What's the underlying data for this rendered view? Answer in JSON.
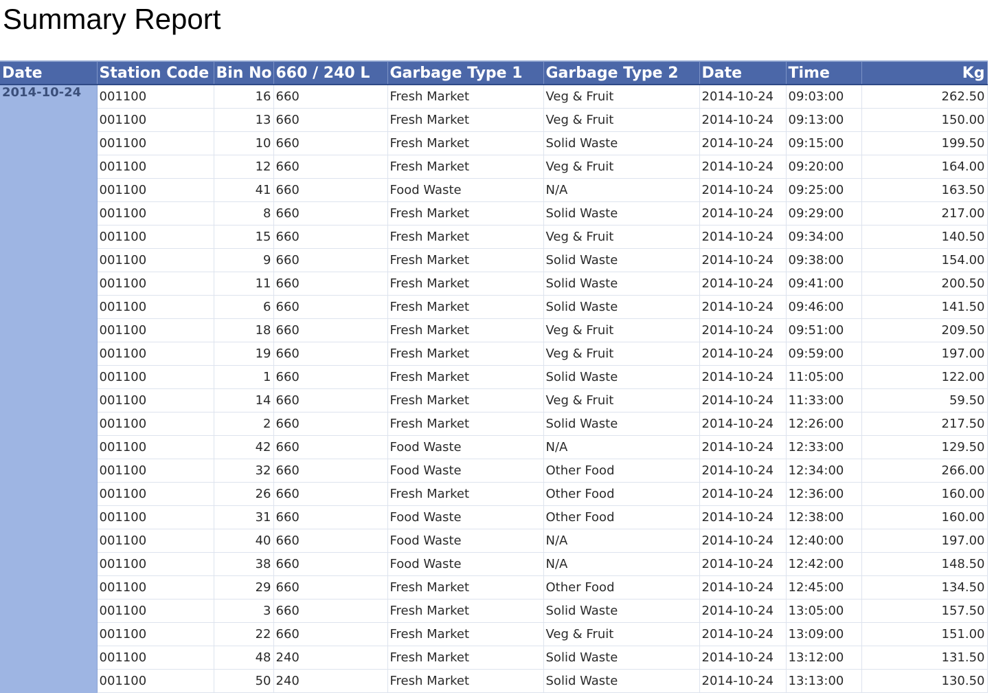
{
  "page": {
    "title": "Summary Report"
  },
  "table": {
    "columns": [
      "Date",
      "Station Code",
      "Bin No",
      "660 / 240 L",
      "Garbage Type 1",
      "Garbage  Type 2",
      "Date",
      "Time",
      "Kg"
    ],
    "group_date": "2014-10-24",
    "rows": [
      [
        "001100",
        "16",
        "660",
        "Fresh Market",
        "Veg & Fruit",
        "2014-10-24",
        "09:03:00",
        "262.50"
      ],
      [
        "001100",
        "13",
        "660",
        "Fresh Market",
        "Veg & Fruit",
        "2014-10-24",
        "09:13:00",
        "150.00"
      ],
      [
        "001100",
        "10",
        "660",
        "Fresh Market",
        "Solid Waste",
        "2014-10-24",
        "09:15:00",
        "199.50"
      ],
      [
        "001100",
        "12",
        "660",
        "Fresh Market",
        "Veg & Fruit",
        "2014-10-24",
        "09:20:00",
        "164.00"
      ],
      [
        "001100",
        "41",
        "660",
        "Food Waste",
        "N/A",
        "2014-10-24",
        "09:25:00",
        "163.50"
      ],
      [
        "001100",
        "8",
        "660",
        "Fresh Market",
        "Solid Waste",
        "2014-10-24",
        "09:29:00",
        "217.00"
      ],
      [
        "001100",
        "15",
        "660",
        "Fresh Market",
        "Veg & Fruit",
        "2014-10-24",
        "09:34:00",
        "140.50"
      ],
      [
        "001100",
        "9",
        "660",
        "Fresh Market",
        "Solid Waste",
        "2014-10-24",
        "09:38:00",
        "154.00"
      ],
      [
        "001100",
        "11",
        "660",
        "Fresh Market",
        "Solid Waste",
        "2014-10-24",
        "09:41:00",
        "200.50"
      ],
      [
        "001100",
        "6",
        "660",
        "Fresh Market",
        "Solid Waste",
        "2014-10-24",
        "09:46:00",
        "141.50"
      ],
      [
        "001100",
        "18",
        "660",
        "Fresh Market",
        "Veg & Fruit",
        "2014-10-24",
        "09:51:00",
        "209.50"
      ],
      [
        "001100",
        "19",
        "660",
        "Fresh Market",
        "Veg & Fruit",
        "2014-10-24",
        "09:59:00",
        "197.00"
      ],
      [
        "001100",
        "1",
        "660",
        "Fresh Market",
        "Solid Waste",
        "2014-10-24",
        "11:05:00",
        "122.00"
      ],
      [
        "001100",
        "14",
        "660",
        "Fresh Market",
        "Veg & Fruit",
        "2014-10-24",
        "11:33:00",
        "59.50"
      ],
      [
        "001100",
        "2",
        "660",
        "Fresh Market",
        "Solid Waste",
        "2014-10-24",
        "12:26:00",
        "217.50"
      ],
      [
        "001100",
        "42",
        "660",
        "Food Waste",
        "N/A",
        "2014-10-24",
        "12:33:00",
        "129.50"
      ],
      [
        "001100",
        "32",
        "660",
        "Food Waste",
        "Other Food",
        "2014-10-24",
        "12:34:00",
        "266.00"
      ],
      [
        "001100",
        "26",
        "660",
        "Fresh Market",
        "Other Food",
        "2014-10-24",
        "12:36:00",
        "160.00"
      ],
      [
        "001100",
        "31",
        "660",
        "Food Waste",
        "Other Food",
        "2014-10-24",
        "12:38:00",
        "160.00"
      ],
      [
        "001100",
        "40",
        "660",
        "Food Waste",
        "N/A",
        "2014-10-24",
        "12:40:00",
        "197.00"
      ],
      [
        "001100",
        "38",
        "660",
        "Food Waste",
        "N/A",
        "2014-10-24",
        "12:42:00",
        "148.50"
      ],
      [
        "001100",
        "29",
        "660",
        "Fresh Market",
        "Other Food",
        "2014-10-24",
        "12:45:00",
        "134.50"
      ],
      [
        "001100",
        "3",
        "660",
        "Fresh Market",
        "Solid Waste",
        "2014-10-24",
        "13:05:00",
        "157.50"
      ],
      [
        "001100",
        "22",
        "660",
        "Fresh Market",
        "Veg & Fruit",
        "2014-10-24",
        "13:09:00",
        "151.00"
      ],
      [
        "001100",
        "48",
        "240",
        "Fresh Market",
        "Solid Waste",
        "2014-10-24",
        "13:12:00",
        "131.50"
      ],
      [
        "001100",
        "50",
        "240",
        "Fresh Market",
        "Solid Waste",
        "2014-10-24",
        "13:13:00",
        "130.50"
      ]
    ]
  },
  "colors": {
    "header_bg": "#4b67a8",
    "header_text": "#ffffff",
    "group_column_bg": "#9eb5e3",
    "grid_line": "#dde3ee"
  }
}
